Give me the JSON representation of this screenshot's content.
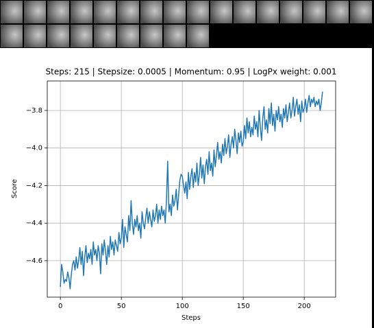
{
  "chart_data": {
    "type": "line",
    "title": "Steps: 215 | Stepsize: 0.0005 | Momentum: 0.95 | LogPx weight: 0.001",
    "x_label": "Steps",
    "y_label": "Score",
    "xlim": [
      -10.75,
      225.75
    ],
    "xticks": [
      0,
      50,
      100,
      150,
      200
    ],
    "ylim": [
      -4.794,
      -3.643
    ],
    "yticks": [
      {
        "value": -4.6,
        "label": "−4.6"
      },
      {
        "value": -4.4,
        "label": "−4.4"
      },
      {
        "value": -4.2,
        "label": "−4.2"
      },
      {
        "value": -4.0,
        "label": "−4.0"
      },
      {
        "value": -3.8,
        "label": "−3.8"
      }
    ],
    "grid": true,
    "x": [
      0,
      1,
      2,
      3,
      4,
      5,
      6,
      7,
      8,
      9,
      10,
      11,
      12,
      13,
      14,
      15,
      16,
      17,
      18,
      19,
      20,
      21,
      22,
      23,
      24,
      25,
      26,
      27,
      28,
      29,
      30,
      31,
      32,
      33,
      34,
      35,
      36,
      37,
      38,
      39,
      40,
      41,
      42,
      43,
      44,
      45,
      46,
      47,
      48,
      49,
      50,
      51,
      52,
      53,
      54,
      55,
      56,
      57,
      58,
      59,
      60,
      61,
      62,
      63,
      64,
      65,
      66,
      67,
      68,
      69,
      70,
      71,
      72,
      73,
      74,
      75,
      76,
      77,
      78,
      79,
      80,
      81,
      82,
      83,
      84,
      85,
      86,
      87,
      88,
      89,
      90,
      91,
      92,
      93,
      94,
      95,
      96,
      97,
      98,
      99,
      100,
      101,
      102,
      103,
      104,
      105,
      106,
      107,
      108,
      109,
      110,
      111,
      112,
      113,
      114,
      115,
      116,
      117,
      118,
      119,
      120,
      121,
      122,
      123,
      124,
      125,
      126,
      127,
      128,
      129,
      130,
      131,
      132,
      133,
      134,
      135,
      136,
      137,
      138,
      139,
      140,
      141,
      142,
      143,
      144,
      145,
      146,
      147,
      148,
      149,
      150,
      151,
      152,
      153,
      154,
      155,
      156,
      157,
      158,
      159,
      160,
      161,
      162,
      163,
      164,
      165,
      166,
      167,
      168,
      169,
      170,
      171,
      172,
      173,
      174,
      175,
      176,
      177,
      178,
      179,
      180,
      181,
      182,
      183,
      184,
      185,
      186,
      187,
      188,
      189,
      190,
      191,
      192,
      193,
      194,
      195,
      196,
      197,
      198,
      199,
      200,
      201,
      202,
      203,
      204,
      205,
      206,
      207,
      208,
      209,
      210,
      211,
      212,
      213,
      214,
      215
    ],
    "series": [
      {
        "name": "Score",
        "color": "#1f77b4",
        "values": [
          -4.74,
          -4.62,
          -4.66,
          -4.72,
          -4.7,
          -4.71,
          -4.66,
          -4.69,
          -4.75,
          -4.67,
          -4.62,
          -4.6,
          -4.65,
          -4.58,
          -4.64,
          -4.6,
          -4.53,
          -4.62,
          -4.55,
          -4.68,
          -4.58,
          -4.52,
          -4.61,
          -4.56,
          -4.59,
          -4.54,
          -4.62,
          -4.5,
          -4.57,
          -4.54,
          -4.6,
          -4.52,
          -4.56,
          -4.67,
          -4.51,
          -4.57,
          -4.49,
          -4.55,
          -4.62,
          -4.52,
          -4.58,
          -4.47,
          -4.54,
          -4.5,
          -4.57,
          -4.49,
          -4.52,
          -4.55,
          -4.45,
          -4.51,
          -4.48,
          -4.38,
          -4.53,
          -4.42,
          -4.46,
          -4.5,
          -4.36,
          -4.44,
          -4.28,
          -4.4,
          -4.46,
          -4.38,
          -4.42,
          -4.36,
          -4.44,
          -4.4,
          -4.48,
          -4.34,
          -4.4,
          -4.43,
          -4.37,
          -4.32,
          -4.4,
          -4.34,
          -4.38,
          -4.42,
          -4.33,
          -4.39,
          -4.36,
          -4.3,
          -4.4,
          -4.33,
          -4.38,
          -4.31,
          -4.36,
          -4.33,
          -4.4,
          -4.28,
          -4.07,
          -4.34,
          -4.3,
          -4.36,
          -4.25,
          -4.31,
          -4.28,
          -4.22,
          -4.33,
          -4.25,
          -4.17,
          -4.14,
          -4.15,
          -4.2,
          -4.24,
          -4.18,
          -4.27,
          -4.13,
          -4.22,
          -4.15,
          -4.11,
          -4.21,
          -4.13,
          -4.18,
          -4.08,
          -4.2,
          -4.14,
          -4.05,
          -4.16,
          -4.09,
          -4.19,
          -4.1,
          -4.06,
          -4.14,
          -4.02,
          -4.12,
          -4.08,
          -4.15,
          -4.01,
          -4.1,
          -4.04,
          -3.97,
          -4.06,
          -4.02,
          -4.08,
          -3.98,
          -4.04,
          -3.95,
          -4.03,
          -3.99,
          -3.93,
          -4.05,
          -3.98,
          -3.94,
          -4.0,
          -3.9,
          -3.96,
          -4.03,
          -3.92,
          -3.97,
          -3.91,
          -3.99,
          -3.97,
          -3.88,
          -3.95,
          -3.84,
          -3.92,
          -3.86,
          -3.94,
          -3.89,
          -3.93,
          -3.83,
          -3.9,
          -3.86,
          -3.94,
          -3.8,
          -3.89,
          -3.96,
          -3.84,
          -3.78,
          -3.9,
          -3.85,
          -3.92,
          -3.79,
          -3.87,
          -3.76,
          -3.88,
          -3.82,
          -3.91,
          -3.8,
          -3.85,
          -3.78,
          -3.86,
          -3.82,
          -3.89,
          -3.79,
          -3.84,
          -3.77,
          -3.86,
          -3.81,
          -3.76,
          -3.84,
          -3.8,
          -3.73,
          -3.83,
          -3.78,
          -3.74,
          -3.82,
          -3.77,
          -3.86,
          -3.75,
          -3.81,
          -3.79,
          -3.74,
          -3.81,
          -3.76,
          -3.72,
          -3.78,
          -3.74,
          -3.76,
          -3.73,
          -3.78,
          -3.75,
          -3.77,
          -3.74,
          -3.8,
          -3.76,
          -3.7
        ]
      }
    ]
  }
}
